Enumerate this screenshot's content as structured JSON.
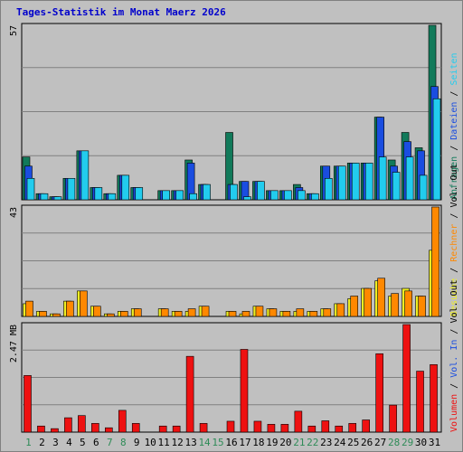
{
  "title": "Tages-Statistik im Monat Maerz 2026",
  "colors": {
    "background": "#c0c0c0",
    "title": "#0000cc",
    "grid": "#808080",
    "anfragen": "#117a5a",
    "dateien": "#1a4de0",
    "seiten": "#22ccee",
    "besuche": "#eeee22",
    "rechner": "#ff8800",
    "volumen": "#ee1111",
    "weekend_label": "#2e8b57",
    "weekday_label": "#000000"
  },
  "chart_data": [
    {
      "type": "bar",
      "panel": "top",
      "ymax_label": "57",
      "ylim": [
        0,
        57
      ],
      "legend": [
        {
          "label": "Anfragen",
          "color": "#117a5a"
        },
        {
          "label": "/",
          "color": "#000000"
        },
        {
          "label": "Dateien",
          "color": "#1a4de0"
        },
        {
          "label": "/",
          "color": "#000000"
        },
        {
          "label": "Seiten",
          "color": "#22ccee"
        }
      ],
      "categories": [
        "1",
        "2",
        "3",
        "4",
        "5",
        "6",
        "7",
        "8",
        "9",
        "10",
        "11",
        "12",
        "13",
        "14",
        "15",
        "16",
        "17",
        "18",
        "19",
        "20",
        "21",
        "22",
        "23",
        "24",
        "25",
        "26",
        "27",
        "28",
        "29",
        "30",
        "31"
      ],
      "series": [
        {
          "name": "Anfragen",
          "values": [
            14,
            2,
            1,
            7,
            16,
            4,
            2,
            8,
            4,
            0,
            3,
            3,
            13,
            5,
            0,
            22,
            6,
            6,
            3,
            3,
            5,
            2,
            11,
            11,
            12,
            12,
            27,
            13,
            22,
            17,
            57
          ]
        },
        {
          "name": "Dateien",
          "values": [
            11,
            2,
            1,
            7,
            16,
            4,
            2,
            8,
            4,
            0,
            3,
            3,
            12,
            5,
            0,
            5,
            6,
            6,
            3,
            3,
            4,
            2,
            11,
            11,
            12,
            12,
            27,
            11,
            19,
            16,
            37
          ]
        },
        {
          "name": "Seiten",
          "values": [
            7,
            2,
            1,
            7,
            16,
            4,
            2,
            8,
            4,
            0,
            3,
            3,
            2,
            5,
            0,
            5,
            1,
            6,
            3,
            3,
            3,
            2,
            7,
            11,
            12,
            12,
            14,
            9,
            14,
            8,
            33
          ]
        }
      ]
    },
    {
      "type": "bar",
      "panel": "middle",
      "ymax_label": "43",
      "ylim": [
        0,
        43
      ],
      "legend": [
        {
          "label": "Besuche",
          "color": "#eeee22"
        },
        {
          "label": "/",
          "color": "#000000"
        },
        {
          "label": "Rechner",
          "color": "#ff8800"
        },
        {
          "label": "/",
          "color": "#000000"
        },
        {
          "label": "Vol. Out",
          "color": "#000000"
        }
      ],
      "categories": [
        "1",
        "2",
        "3",
        "4",
        "5",
        "6",
        "7",
        "8",
        "9",
        "10",
        "11",
        "12",
        "13",
        "14",
        "15",
        "16",
        "17",
        "18",
        "19",
        "20",
        "21",
        "22",
        "23",
        "24",
        "25",
        "26",
        "27",
        "28",
        "29",
        "30",
        "31"
      ],
      "series": [
        {
          "name": "Besuche",
          "values": [
            5,
            2,
            1,
            6,
            10,
            4,
            1,
            2,
            3,
            0,
            3,
            2,
            2,
            4,
            0,
            2,
            1,
            4,
            3,
            2,
            2,
            2,
            3,
            5,
            7,
            11,
            14,
            8,
            11,
            8,
            26
          ]
        },
        {
          "name": "Rechner",
          "values": [
            6,
            2,
            1,
            6,
            10,
            4,
            1,
            2,
            3,
            0,
            3,
            2,
            3,
            4,
            0,
            2,
            2,
            4,
            3,
            2,
            3,
            2,
            3,
            5,
            8,
            11,
            15,
            9,
            10,
            8,
            43
          ]
        }
      ]
    },
    {
      "type": "bar",
      "panel": "bottom",
      "ymax_label": "2.47 MB",
      "ylim": [
        0,
        2.47
      ],
      "legend": [
        {
          "label": "Volumen",
          "color": "#ee1111"
        },
        {
          "label": "/",
          "color": "#000000"
        },
        {
          "label": "Vol. In",
          "color": "#1a4de0"
        },
        {
          "label": "/",
          "color": "#000000"
        },
        {
          "label": "Vol. Out",
          "color": "#000000"
        }
      ],
      "categories": [
        "1",
        "2",
        "3",
        "4",
        "5",
        "6",
        "7",
        "8",
        "9",
        "10",
        "11",
        "12",
        "13",
        "14",
        "15",
        "16",
        "17",
        "18",
        "19",
        "20",
        "21",
        "22",
        "23",
        "24",
        "25",
        "26",
        "27",
        "28",
        "29",
        "30",
        "31"
      ],
      "series": [
        {
          "name": "Volumen",
          "values": [
            1.3,
            0.14,
            0.08,
            0.33,
            0.38,
            0.2,
            0.1,
            0.5,
            0.2,
            0,
            0.14,
            0.14,
            1.74,
            0.2,
            0,
            0.25,
            1.9,
            0.25,
            0.18,
            0.18,
            0.48,
            0.14,
            0.26,
            0.14,
            0.2,
            0.28,
            1.8,
            0.62,
            2.47,
            1.4,
            1.55
          ]
        }
      ]
    }
  ],
  "x_labels": [
    {
      "text": "1",
      "weekend": true
    },
    {
      "text": "2",
      "weekend": false
    },
    {
      "text": "3",
      "weekend": false
    },
    {
      "text": "4",
      "weekend": false
    },
    {
      "text": "5",
      "weekend": false
    },
    {
      "text": "6",
      "weekend": false
    },
    {
      "text": "7",
      "weekend": true
    },
    {
      "text": "8",
      "weekend": true
    },
    {
      "text": "9",
      "weekend": false
    },
    {
      "text": "10",
      "weekend": false
    },
    {
      "text": "11",
      "weekend": false
    },
    {
      "text": "12",
      "weekend": false
    },
    {
      "text": "13",
      "weekend": false
    },
    {
      "text": "14",
      "weekend": true
    },
    {
      "text": "15",
      "weekend": true
    },
    {
      "text": "16",
      "weekend": false
    },
    {
      "text": "17",
      "weekend": false
    },
    {
      "text": "18",
      "weekend": false
    },
    {
      "text": "19",
      "weekend": false
    },
    {
      "text": "20",
      "weekend": false
    },
    {
      "text": "21",
      "weekend": true
    },
    {
      "text": "22",
      "weekend": true
    },
    {
      "text": "23",
      "weekend": false
    },
    {
      "text": "24",
      "weekend": false
    },
    {
      "text": "25",
      "weekend": false
    },
    {
      "text": "26",
      "weekend": false
    },
    {
      "text": "27",
      "weekend": false
    },
    {
      "text": "28",
      "weekend": true
    },
    {
      "text": "29",
      "weekend": true
    },
    {
      "text": "30",
      "weekend": false
    },
    {
      "text": "31",
      "weekend": false
    }
  ]
}
